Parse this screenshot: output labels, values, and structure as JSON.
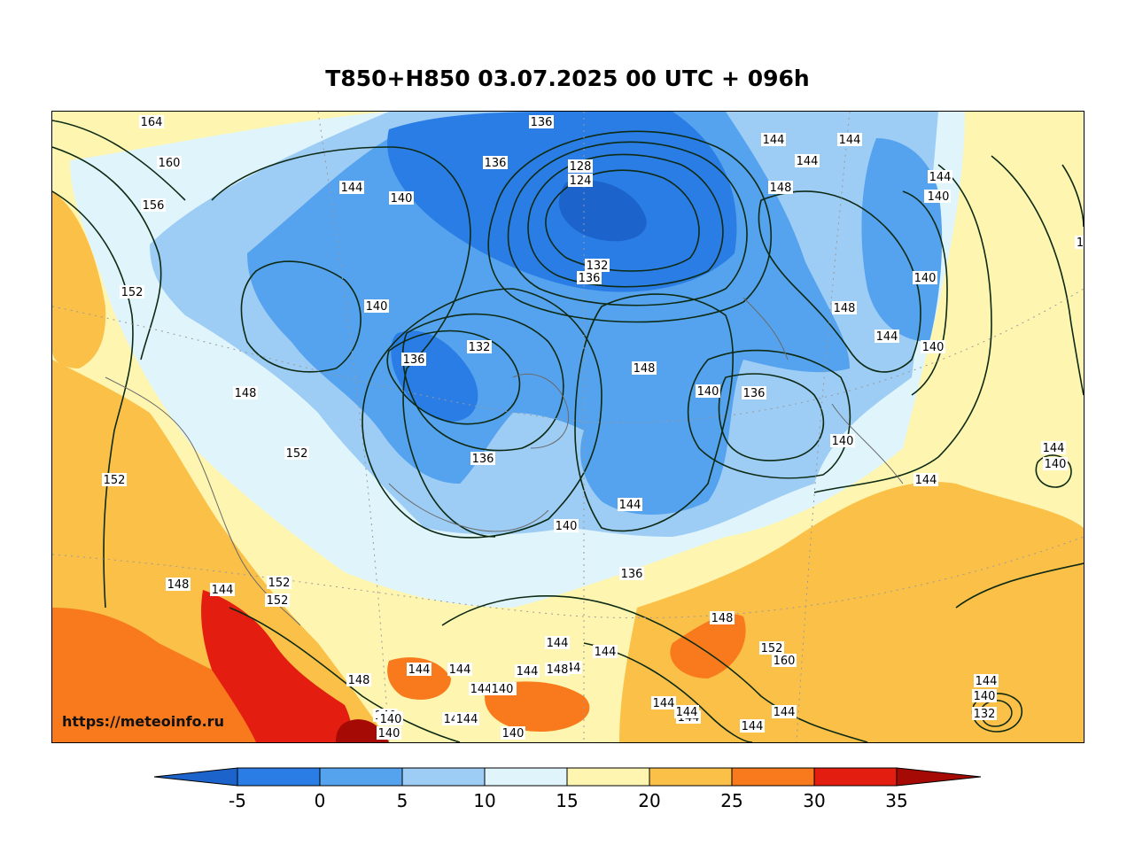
{
  "title": "T850+H850 03.07.2025 00 UTC + 096h",
  "watermark": "https://meteoinfo.ru",
  "colorbar": {
    "ticks": [
      "-5",
      "0",
      "5",
      "10",
      "15",
      "20",
      "25",
      "30",
      "35"
    ],
    "colors": [
      "#1c63cc",
      "#2b7de6",
      "#55a3ee",
      "#9dccf5",
      "#dff4fb",
      "#fef6b0",
      "#fbc048",
      "#f87a1d",
      "#e31e10",
      "#a50a05"
    ]
  },
  "contour_labels": [
    {
      "text": "164"
    },
    {
      "text": "160"
    },
    {
      "text": "156"
    },
    {
      "text": "152"
    },
    {
      "text": "148"
    },
    {
      "text": "152"
    },
    {
      "text": "152"
    },
    {
      "text": "148"
    },
    {
      "text": "144"
    },
    {
      "text": "152"
    },
    {
      "text": "152"
    },
    {
      "text": "148"
    },
    {
      "text": "140"
    },
    {
      "text": "144"
    },
    {
      "text": "140"
    },
    {
      "text": "136"
    },
    {
      "text": "136"
    },
    {
      "text": "128"
    },
    {
      "text": "124"
    },
    {
      "text": "132"
    },
    {
      "text": "136"
    },
    {
      "text": "140"
    },
    {
      "text": "144"
    },
    {
      "text": "136"
    },
    {
      "text": "132"
    },
    {
      "text": "136"
    },
    {
      "text": "140"
    },
    {
      "text": "140"
    },
    {
      "text": "136"
    },
    {
      "text": "144"
    },
    {
      "text": "148"
    },
    {
      "text": "140"
    },
    {
      "text": "136"
    },
    {
      "text": "140"
    },
    {
      "text": "144"
    },
    {
      "text": "144"
    },
    {
      "text": "148"
    },
    {
      "text": "144"
    },
    {
      "text": "140"
    },
    {
      "text": "140"
    },
    {
      "text": "148"
    },
    {
      "text": "144"
    },
    {
      "text": "140"
    },
    {
      "text": "144"
    },
    {
      "text": "144"
    },
    {
      "text": "140"
    },
    {
      "text": "144"
    },
    {
      "text": "140"
    },
    {
      "text": "144"
    },
    {
      "text": "144"
    },
    {
      "text": "144"
    },
    {
      "text": "144"
    },
    {
      "text": "144"
    },
    {
      "text": "144"
    },
    {
      "text": "140"
    },
    {
      "text": "144"
    },
    {
      "text": "148"
    },
    {
      "text": "144"
    },
    {
      "text": "144"
    },
    {
      "text": "140"
    },
    {
      "text": "144"
    },
    {
      "text": "144"
    },
    {
      "text": "148"
    },
    {
      "text": "152"
    },
    {
      "text": "160"
    },
    {
      "text": "140"
    },
    {
      "text": "144"
    },
    {
      "text": "140"
    },
    {
      "text": "144"
    },
    {
      "text": "144"
    },
    {
      "text": "144"
    },
    {
      "text": "140"
    },
    {
      "text": "132"
    },
    {
      "text": "144"
    },
    {
      "text": "1"
    }
  ]
}
